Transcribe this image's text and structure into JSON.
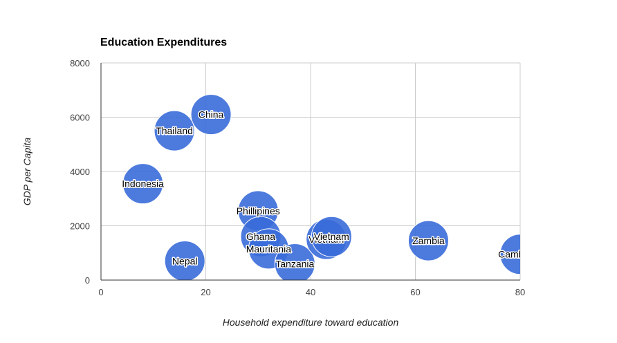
{
  "chart_data": {
    "type": "scatter",
    "title": "Education Expenditures",
    "xlabel": "Household expenditure toward education",
    "ylabel": "GDP per Capita",
    "xlim": [
      0,
      80
    ],
    "ylim": [
      0,
      8000
    ],
    "xticks": [
      "0",
      "20",
      "40",
      "60",
      "80"
    ],
    "yticks": [
      "0",
      "2000",
      "4000",
      "6000",
      "8000"
    ],
    "grid": true,
    "bubble_color": "#3a6bd9",
    "points": [
      {
        "label": "China",
        "x": 21,
        "y": 6100
      },
      {
        "label": "Thailand",
        "x": 14,
        "y": 5500
      },
      {
        "label": "Indonesia",
        "x": 8,
        "y": 3550
      },
      {
        "label": "Phillipines",
        "x": 30,
        "y": 2550
      },
      {
        "label": "Ghana",
        "x": 30.5,
        "y": 1600
      },
      {
        "label": "Mauritania",
        "x": 32,
        "y": 1150
      },
      {
        "label": "Nepal",
        "x": 16,
        "y": 700
      },
      {
        "label": "Tanzania",
        "x": 37,
        "y": 600
      },
      {
        "label": "Vietnam",
        "x": 43,
        "y": 1500
      },
      {
        "label": "Vietnam",
        "x": 44,
        "y": 1600
      },
      {
        "label": "Zambia",
        "x": 62.5,
        "y": 1450
      },
      {
        "label": "Cambodia",
        "x": 80,
        "y": 950
      }
    ]
  }
}
